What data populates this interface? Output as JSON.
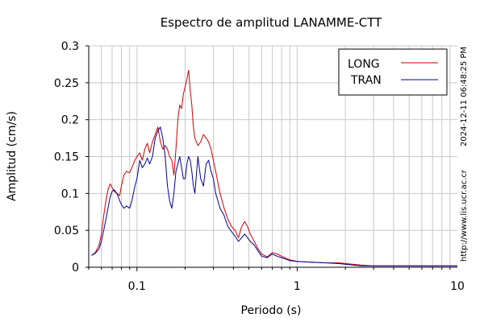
{
  "chart_data": {
    "type": "line",
    "title": "Espectro de amplitud LANAMME-CTT",
    "xlabel": "Periodo (s)",
    "ylabel": "Amplitud (cm/s)",
    "xscale": "log",
    "xlim": [
      0.05,
      10
    ],
    "ylim": [
      0,
      0.3
    ],
    "xticks": [
      {
        "value": 0.1,
        "label": "0.1"
      },
      {
        "value": 1,
        "label": "1"
      },
      {
        "value": 10,
        "label": "10"
      }
    ],
    "yticks": [
      {
        "value": 0,
        "label": "0"
      },
      {
        "value": 0.05,
        "label": "0.05"
      },
      {
        "value": 0.1,
        "label": "0.1"
      },
      {
        "value": 0.15,
        "label": "0.15"
      },
      {
        "value": 0.2,
        "label": "0.2"
      },
      {
        "value": 0.25,
        "label": "0.25"
      },
      {
        "value": 0.3,
        "label": "0.3"
      }
    ],
    "grid": true,
    "legend_position": "top-right",
    "side_text": [
      "2024-12-11 06:48:25 PM",
      "http://www.lis.ucr.ac.cr"
    ],
    "series": [
      {
        "name": "LONG",
        "color": "#cc0000",
        "points": [
          [
            0.052,
            0.016
          ],
          [
            0.055,
            0.02
          ],
          [
            0.058,
            0.03
          ],
          [
            0.06,
            0.045
          ],
          [
            0.062,
            0.07
          ],
          [
            0.064,
            0.09
          ],
          [
            0.066,
            0.105
          ],
          [
            0.068,
            0.113
          ],
          [
            0.07,
            0.108
          ],
          [
            0.072,
            0.103
          ],
          [
            0.075,
            0.1
          ],
          [
            0.078,
            0.097
          ],
          [
            0.08,
            0.11
          ],
          [
            0.083,
            0.125
          ],
          [
            0.086,
            0.13
          ],
          [
            0.09,
            0.128
          ],
          [
            0.093,
            0.135
          ],
          [
            0.097,
            0.145
          ],
          [
            0.1,
            0.15
          ],
          [
            0.104,
            0.155
          ],
          [
            0.108,
            0.145
          ],
          [
            0.112,
            0.16
          ],
          [
            0.116,
            0.168
          ],
          [
            0.12,
            0.155
          ],
          [
            0.125,
            0.17
          ],
          [
            0.13,
            0.18
          ],
          [
            0.135,
            0.19
          ],
          [
            0.14,
            0.17
          ],
          [
            0.145,
            0.16
          ],
          [
            0.15,
            0.165
          ],
          [
            0.155,
            0.16
          ],
          [
            0.16,
            0.15
          ],
          [
            0.165,
            0.145
          ],
          [
            0.17,
            0.125
          ],
          [
            0.175,
            0.16
          ],
          [
            0.18,
            0.2
          ],
          [
            0.185,
            0.22
          ],
          [
            0.19,
            0.215
          ],
          [
            0.195,
            0.235
          ],
          [
            0.2,
            0.245
          ],
          [
            0.205,
            0.255
          ],
          [
            0.21,
            0.267
          ],
          [
            0.215,
            0.24
          ],
          [
            0.22,
            0.22
          ],
          [
            0.225,
            0.19
          ],
          [
            0.23,
            0.175
          ],
          [
            0.24,
            0.165
          ],
          [
            0.25,
            0.17
          ],
          [
            0.26,
            0.18
          ],
          [
            0.27,
            0.175
          ],
          [
            0.28,
            0.17
          ],
          [
            0.29,
            0.16
          ],
          [
            0.3,
            0.145
          ],
          [
            0.31,
            0.13
          ],
          [
            0.32,
            0.115
          ],
          [
            0.33,
            0.1
          ],
          [
            0.35,
            0.08
          ],
          [
            0.37,
            0.065
          ],
          [
            0.39,
            0.055
          ],
          [
            0.41,
            0.05
          ],
          [
            0.43,
            0.04
          ],
          [
            0.45,
            0.055
          ],
          [
            0.47,
            0.062
          ],
          [
            0.49,
            0.055
          ],
          [
            0.51,
            0.045
          ],
          [
            0.54,
            0.035
          ],
          [
            0.57,
            0.025
          ],
          [
            0.6,
            0.018
          ],
          [
            0.65,
            0.014
          ],
          [
            0.7,
            0.02
          ],
          [
            0.75,
            0.018
          ],
          [
            0.8,
            0.015
          ],
          [
            0.9,
            0.01
          ],
          [
            1.0,
            0.008
          ],
          [
            1.2,
            0.007
          ],
          [
            1.5,
            0.006
          ],
          [
            1.8,
            0.006
          ],
          [
            2.0,
            0.005
          ],
          [
            2.5,
            0.003
          ],
          [
            3.0,
            0.002
          ],
          [
            4.0,
            0.002
          ],
          [
            5.0,
            0.002
          ],
          [
            6.0,
            0.002
          ],
          [
            8.0,
            0.002
          ],
          [
            10.0,
            0.002
          ]
        ]
      },
      {
        "name": "TRAN",
        "color": "#000099",
        "points": [
          [
            0.052,
            0.016
          ],
          [
            0.055,
            0.019
          ],
          [
            0.058,
            0.025
          ],
          [
            0.06,
            0.035
          ],
          [
            0.062,
            0.05
          ],
          [
            0.064,
            0.065
          ],
          [
            0.066,
            0.08
          ],
          [
            0.068,
            0.095
          ],
          [
            0.07,
            0.103
          ],
          [
            0.072,
            0.105
          ],
          [
            0.075,
            0.1
          ],
          [
            0.078,
            0.09
          ],
          [
            0.08,
            0.085
          ],
          [
            0.083,
            0.08
          ],
          [
            0.086,
            0.083
          ],
          [
            0.09,
            0.08
          ],
          [
            0.093,
            0.09
          ],
          [
            0.097,
            0.11
          ],
          [
            0.1,
            0.12
          ],
          [
            0.104,
            0.145
          ],
          [
            0.108,
            0.135
          ],
          [
            0.112,
            0.14
          ],
          [
            0.116,
            0.148
          ],
          [
            0.12,
            0.14
          ],
          [
            0.125,
            0.15
          ],
          [
            0.13,
            0.175
          ],
          [
            0.135,
            0.185
          ],
          [
            0.14,
            0.19
          ],
          [
            0.145,
            0.175
          ],
          [
            0.15,
            0.15
          ],
          [
            0.155,
            0.11
          ],
          [
            0.16,
            0.09
          ],
          [
            0.165,
            0.08
          ],
          [
            0.17,
            0.1
          ],
          [
            0.175,
            0.13
          ],
          [
            0.18,
            0.14
          ],
          [
            0.185,
            0.15
          ],
          [
            0.19,
            0.135
          ],
          [
            0.195,
            0.12
          ],
          [
            0.2,
            0.12
          ],
          [
            0.205,
            0.14
          ],
          [
            0.21,
            0.15
          ],
          [
            0.215,
            0.145
          ],
          [
            0.22,
            0.13
          ],
          [
            0.225,
            0.11
          ],
          [
            0.23,
            0.1
          ],
          [
            0.24,
            0.15
          ],
          [
            0.25,
            0.12
          ],
          [
            0.26,
            0.11
          ],
          [
            0.27,
            0.14
          ],
          [
            0.28,
            0.145
          ],
          [
            0.29,
            0.13
          ],
          [
            0.3,
            0.12
          ],
          [
            0.31,
            0.1
          ],
          [
            0.32,
            0.09
          ],
          [
            0.33,
            0.08
          ],
          [
            0.35,
            0.07
          ],
          [
            0.37,
            0.055
          ],
          [
            0.39,
            0.048
          ],
          [
            0.41,
            0.042
          ],
          [
            0.43,
            0.035
          ],
          [
            0.45,
            0.04
          ],
          [
            0.47,
            0.045
          ],
          [
            0.49,
            0.04
          ],
          [
            0.51,
            0.035
          ],
          [
            0.54,
            0.03
          ],
          [
            0.57,
            0.022
          ],
          [
            0.6,
            0.015
          ],
          [
            0.65,
            0.013
          ],
          [
            0.7,
            0.018
          ],
          [
            0.75,
            0.015
          ],
          [
            0.8,
            0.013
          ],
          [
            0.9,
            0.009
          ],
          [
            1.0,
            0.008
          ],
          [
            1.2,
            0.007
          ],
          [
            1.5,
            0.006
          ],
          [
            1.8,
            0.005
          ],
          [
            2.0,
            0.004
          ],
          [
            2.5,
            0.002
          ],
          [
            3.0,
            0.002
          ],
          [
            4.0,
            0.002
          ],
          [
            5.0,
            0.002
          ],
          [
            6.0,
            0.002
          ],
          [
            8.0,
            0.002
          ],
          [
            10.0,
            0.002
          ]
        ]
      }
    ]
  }
}
